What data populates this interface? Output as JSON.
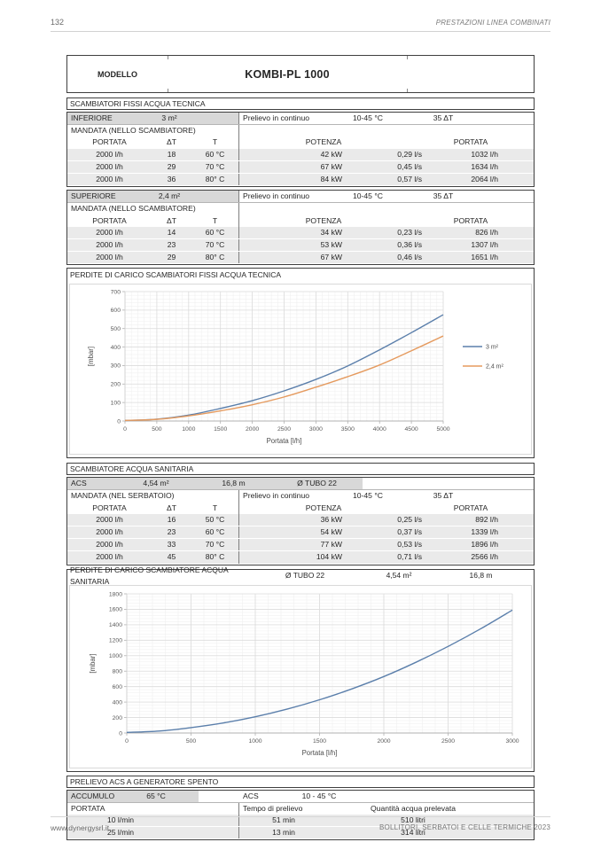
{
  "page": {
    "number": "132",
    "header_right": "PRESTAZIONI LINEA COMBINATI",
    "footer_left": "www.dynergysrl.it",
    "footer_right": "BOLLITORI, SERBATOI E CELLE TERMICHE 2023"
  },
  "model": {
    "label": "MODELLO",
    "value": "KOMBI-PL 1000"
  },
  "sections": {
    "tecnica": {
      "title": "SCAMBIATORI FISSI ACQUA TECNICA",
      "blocks": [
        {
          "name": "INFERIORE",
          "area": "3 m²",
          "prelievo": {
            "label": "Prelievo in continuo",
            "range": "10-45 °C",
            "dt": "35 ΔT"
          },
          "mandata": "MANDATA (NELLO SCAMBIATORE)",
          "headers": {
            "portata": "PORTATA",
            "dt": "ΔT",
            "t": "T",
            "potenza": "POTENZA",
            "portata2": "PORTATA"
          },
          "rows": [
            [
              "2000 l/h",
              "18",
              "60 °C",
              "42 kW",
              "0,29 l/s",
              "1032 l/h"
            ],
            [
              "2000 l/h",
              "29",
              "70 °C",
              "67 kW",
              "0,45 l/s",
              "1634 l/h"
            ],
            [
              "2000 l/h",
              "36",
              "80° C",
              "84 kW",
              "0,57 l/s",
              "2064 l/h"
            ]
          ]
        },
        {
          "name": "SUPERIORE",
          "area": "2,4 m²",
          "prelievo": {
            "label": "Prelievo in continuo",
            "range": "10-45 °C",
            "dt": "35 ΔT"
          },
          "mandata": "MANDATA (NELLO SCAMBIATORE)",
          "headers": {
            "portata": "PORTATA",
            "dt": "ΔT",
            "t": "T",
            "potenza": "POTENZA",
            "portata2": "PORTATA"
          },
          "rows": [
            [
              "2000 l/h",
              "14",
              "60 °C",
              "34 kW",
              "0,23 l/s",
              "826 l/h"
            ],
            [
              "2000 l/h",
              "23",
              "70 °C",
              "53 kW",
              "0,36 l/s",
              "1307 l/h"
            ],
            [
              "2000 l/h",
              "29",
              "80° C",
              "67 kW",
              "0,46 l/s",
              "1651 l/h"
            ]
          ]
        }
      ]
    },
    "sanitaria": {
      "title": "SCAMBIATORE ACQUA SANITARIA",
      "block": {
        "name": "ACS",
        "area": "4,54 m²",
        "length": "16,8 m",
        "tube": "Ø TUBO 22",
        "prelievo": {
          "label": "Prelievo in continuo",
          "range": "10-45 °C",
          "dt": "35 ΔT"
        },
        "mandata": "MANDATA (NEL SERBATOIO)",
        "headers": {
          "portata": "PORTATA",
          "dt": "ΔT",
          "t": "T",
          "potenza": "POTENZA",
          "portata2": "PORTATA"
        },
        "rows": [
          [
            "2000 l/h",
            "16",
            "50 °C",
            "36 kW",
            "0,25 l/s",
            "892 l/h"
          ],
          [
            "2000 l/h",
            "23",
            "60 °C",
            "54 kW",
            "0,37 l/s",
            "1339 l/h"
          ],
          [
            "2000 l/h",
            "33",
            "70 °C",
            "77 kW",
            "0,53 l/s",
            "1896 l/h"
          ],
          [
            "2000 l/h",
            "45",
            "80° C",
            "104 kW",
            "0,71 l/s",
            "2566 l/h"
          ]
        ]
      }
    },
    "prelievo_spento": {
      "title": "PRELIEVO ACS A GENERATORE SPENTO",
      "accumulo_label": "ACCUMULO",
      "accumulo_value": "65 °C",
      "acs_label": "ACS",
      "acs_value": "10 - 45 °C",
      "headers": [
        "PORTATA",
        "Tempo di prelievo",
        "Quantità acqua prelevata"
      ],
      "rows": [
        [
          "10 l/min",
          "51 min",
          "510 litri"
        ],
        [
          "25 l/min",
          "13 min",
          "314 litri"
        ]
      ]
    }
  },
  "chart_data": [
    {
      "type": "line",
      "title": "PERDITE DI CARICO SCAMBIATORI FISSI ACQUA TECNICA",
      "xlabel": "Portata [l/h]",
      "ylabel": "[mbar]",
      "xlim": [
        0,
        5000
      ],
      "ylim": [
        0,
        700
      ],
      "xticks": [
        0,
        500,
        1000,
        1500,
        2000,
        2500,
        3000,
        3500,
        4000,
        4500,
        5000
      ],
      "yticks": [
        0,
        100,
        200,
        300,
        400,
        500,
        600,
        700
      ],
      "grid": "major+minor",
      "legend_position": "right",
      "x": [
        0,
        500,
        1000,
        1500,
        2000,
        2500,
        3000,
        3500,
        4000,
        4500,
        5000
      ],
      "series": [
        {
          "name": "3 m²",
          "color": "#5b7fab",
          "values": [
            3,
            10,
            32,
            68,
            110,
            163,
            225,
            298,
            385,
            478,
            575
          ]
        },
        {
          "name": "2,4 m²",
          "color": "#e59a5e",
          "values": [
            3,
            9,
            28,
            55,
            88,
            130,
            183,
            240,
            303,
            380,
            460
          ]
        }
      ]
    },
    {
      "type": "line",
      "title": "PERDITE DI CARICO SCAMBIATORE ACQUA SANITARIA",
      "tube": "Ø TUBO 22",
      "area": "4,54 m²",
      "length": "16,8 m",
      "xlabel": "Portata [l/h]",
      "ylabel": "[mbar]",
      "xlim": [
        0,
        3000
      ],
      "ylim": [
        0,
        1800
      ],
      "xticks": [
        0,
        500,
        1000,
        1500,
        2000,
        2500,
        3000
      ],
      "yticks": [
        0,
        200,
        400,
        600,
        800,
        1000,
        1200,
        1400,
        1600,
        1800
      ],
      "grid": "major+minor",
      "legend_position": "none",
      "x": [
        0,
        250,
        500,
        750,
        1000,
        1250,
        1500,
        1750,
        2000,
        2250,
        2500,
        2750,
        3000
      ],
      "series": [
        {
          "name": "ACS",
          "color": "#5b7fab",
          "values": [
            8,
            25,
            70,
            130,
            210,
            310,
            430,
            570,
            730,
            915,
            1120,
            1345,
            1590
          ]
        }
      ]
    }
  ]
}
